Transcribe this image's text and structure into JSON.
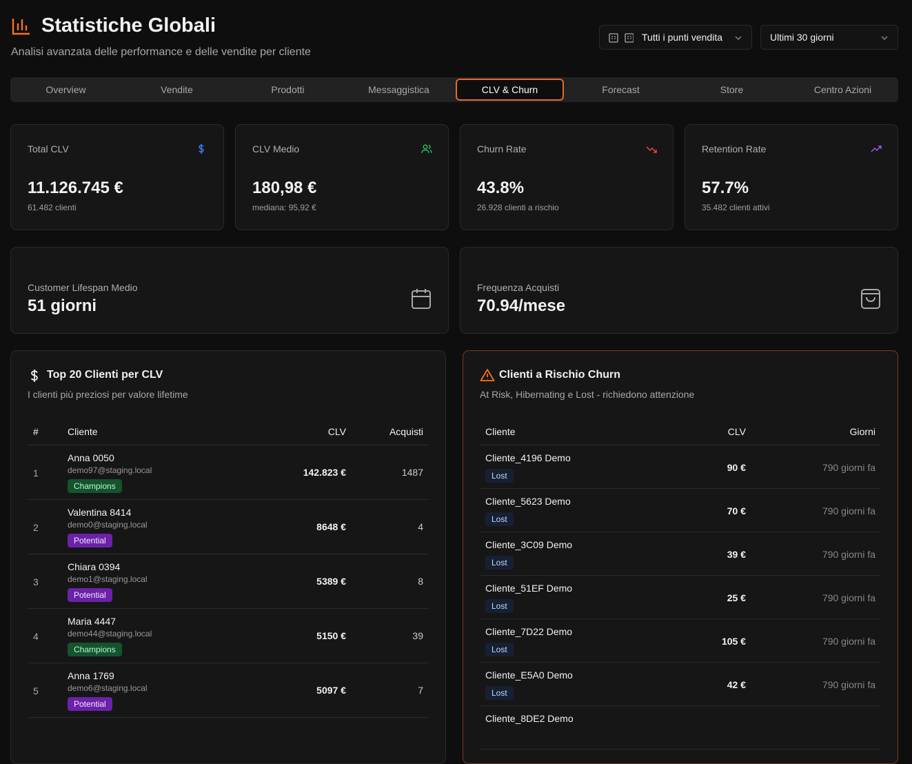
{
  "header": {
    "title": "Statistiche Globali",
    "subtitle": "Analisi avanzata delle performance e delle vendite per cliente"
  },
  "filters": {
    "store": "Tutti i punti vendita",
    "period": "Ultimi 30 giorni"
  },
  "tabs": {
    "items": [
      "Overview",
      "Vendite",
      "Prodotti",
      "Messaggistica",
      "CLV & Churn",
      "Forecast",
      "Store",
      "Centro Azioni"
    ],
    "active": 4
  },
  "kpis": [
    {
      "label": "Total CLV",
      "value": "11.126.745 €",
      "note": "61.482 clienti",
      "color": "#3b82f6"
    },
    {
      "label": "CLV Medio",
      "value": "180,98 €",
      "note": "mediana: 95,92 €",
      "color": "#22c55e"
    },
    {
      "label": "Churn Rate",
      "value": "43.8%",
      "note": "26.928 clienti a rischio",
      "color": "#ef4444"
    },
    {
      "label": "Retention Rate",
      "value": "57.7%",
      "note": "35.482 clienti attivi",
      "color": "#a855f7"
    }
  ],
  "stats": [
    {
      "label": "Customer Lifespan Medio",
      "value": "51 giorni"
    },
    {
      "label": "Frequenza Acquisti",
      "value": "70.94/mese"
    }
  ],
  "segment_colors": {
    "Champions": [
      "#14532d",
      "#bbf7d0"
    ],
    "Potential": [
      "#6b21a8",
      "#f3e8ff"
    ],
    "Lost": [
      "#172033",
      "#bfdbfe"
    ]
  },
  "top_clients": {
    "title": "Top 20 Clienti per CLV",
    "subtitle": "I clienti più preziosi per valore lifetime",
    "columns": [
      "#",
      "Cliente",
      "CLV",
      "Acquisti"
    ],
    "rows": [
      {
        "rank": 1,
        "name": "Anna 0050",
        "email": "demo97@staging.local",
        "segment": "Champions",
        "clv": "142.823 €",
        "purchases": 1487
      },
      {
        "rank": 2,
        "name": "Valentina 8414",
        "email": "demo0@staging.local",
        "segment": "Potential",
        "clv": "8648 €",
        "purchases": 4
      },
      {
        "rank": 3,
        "name": "Chiara 0394",
        "email": "demo1@staging.local",
        "segment": "Potential",
        "clv": "5389 €",
        "purchases": 8
      },
      {
        "rank": 4,
        "name": "Maria 4447",
        "email": "demo44@staging.local",
        "segment": "Champions",
        "clv": "5150 €",
        "purchases": 39
      },
      {
        "rank": 5,
        "name": "Anna 1769",
        "email": "demo6@staging.local",
        "segment": "Potential",
        "clv": "5097 €",
        "purchases": 7
      }
    ]
  },
  "churn": {
    "title": "Clienti a Rischio Churn",
    "subtitle": "At Risk, Hibernating e Lost - richiedono attenzione",
    "columns": [
      "Cliente",
      "CLV",
      "Giorni"
    ],
    "rows": [
      {
        "name": "Cliente_4196 Demo",
        "status": "Lost",
        "clv": "90 €",
        "days": "790 giorni fa"
      },
      {
        "name": "Cliente_5623 Demo",
        "status": "Lost",
        "clv": "70 €",
        "days": "790 giorni fa"
      },
      {
        "name": "Cliente_3C09 Demo",
        "status": "Lost",
        "clv": "39 €",
        "days": "790 giorni fa"
      },
      {
        "name": "Cliente_51EF Demo",
        "status": "Lost",
        "clv": "25 €",
        "days": "790 giorni fa"
      },
      {
        "name": "Cliente_7D22 Demo",
        "status": "Lost",
        "clv": "105 €",
        "days": "790 giorni fa"
      },
      {
        "name": "Cliente_E5A0 Demo",
        "status": "Lost",
        "clv": "42 €",
        "days": "790 giorni fa"
      },
      {
        "name": "Cliente_8DE2 Demo"
      }
    ]
  }
}
